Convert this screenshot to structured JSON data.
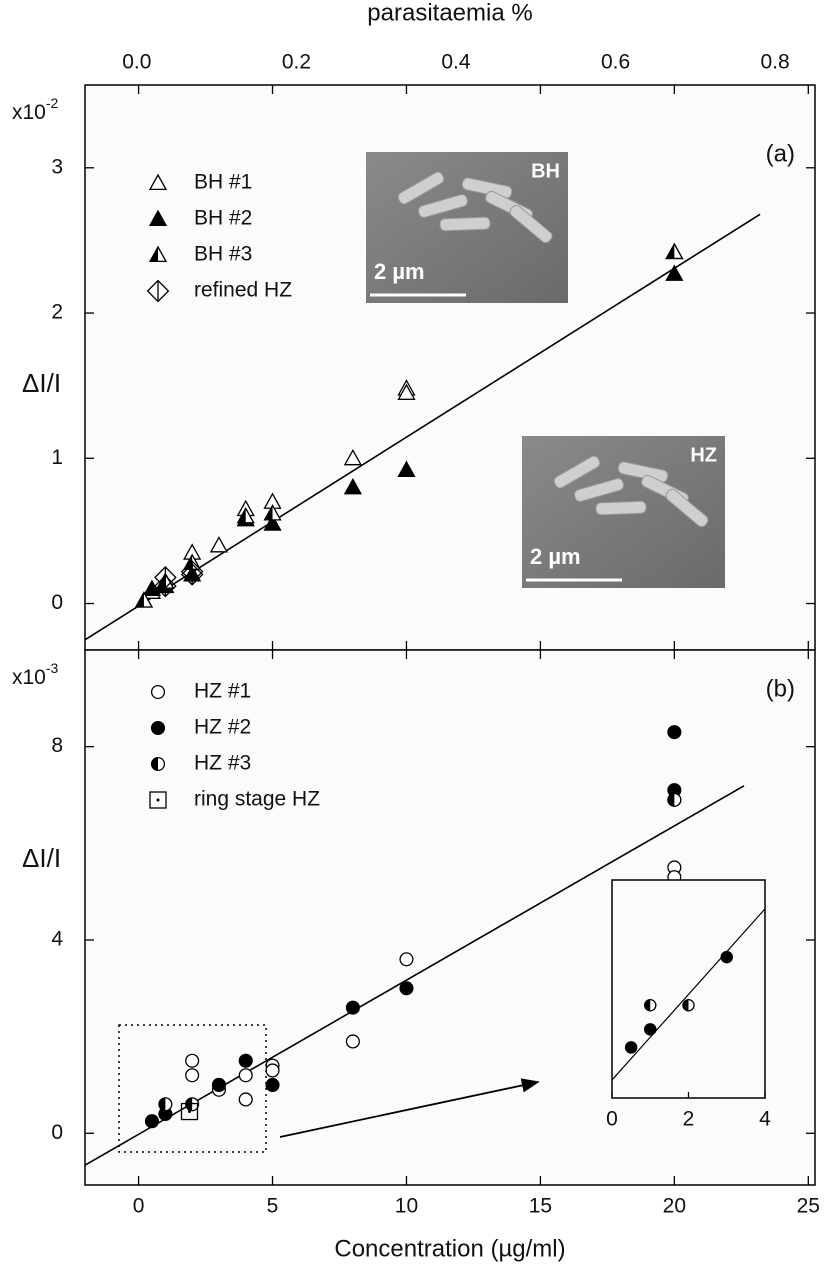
{
  "chart_data": [
    {
      "type": "scatter",
      "panel_label": "(a)",
      "ylabel": "ΔI/I",
      "y_multiplier": {
        "base": "x10",
        "exponent": "-2"
      },
      "x2label": "parasitaemia %",
      "xlim": [
        -2,
        25.25
      ],
      "xticks": [
        0,
        5,
        10,
        15,
        20,
        25
      ],
      "x2lim": [
        -0.065,
        0.85
      ],
      "x2ticks": [
        {
          "value": 0,
          "label": "0.0"
        },
        {
          "value": 0.2,
          "label": "0.2"
        },
        {
          "value": 0.4,
          "label": "0.4"
        },
        {
          "value": 0.6,
          "label": "0.6"
        },
        {
          "value": 0.8,
          "label": "0.8"
        }
      ],
      "ylim": [
        -0.32,
        3.57
      ],
      "yticks": [
        0,
        1,
        2,
        3
      ],
      "series": [
        {
          "name": "BH #1",
          "marker": "triangle-open",
          "color": "#000000",
          "x": [
            0.2,
            0.5,
            1,
            2,
            3,
            4,
            5,
            8,
            10,
            10,
            20
          ],
          "y": [
            0.02,
            0.08,
            0.15,
            0.35,
            0.4,
            0.65,
            0.7,
            1.0,
            1.48,
            1.45,
            2.42
          ]
        },
        {
          "name": "BH #2",
          "marker": "triangle-filled",
          "color": "#000000",
          "x": [
            0.5,
            1,
            2,
            4,
            5,
            8,
            10,
            20
          ],
          "y": [
            0.1,
            0.12,
            0.2,
            0.58,
            0.55,
            0.8,
            0.92,
            2.27
          ]
        },
        {
          "name": "BH #3",
          "marker": "triangle-half",
          "color": "#000000",
          "x": [
            0.2,
            1,
            2,
            4,
            5,
            20
          ],
          "y": [
            0.02,
            0.15,
            0.28,
            0.6,
            0.62,
            2.42
          ]
        },
        {
          "name": "refined HZ",
          "marker": "diamond-half",
          "color": "#000000",
          "x": [
            1,
            1,
            2,
            2
          ],
          "y": [
            0.12,
            0.18,
            0.2,
            0.22
          ]
        }
      ],
      "fit": {
        "x": [
          -2,
          23.2
        ],
        "y": [
          -0.25,
          2.68
        ]
      },
      "images": [
        {
          "label": "BH",
          "scale": "2 µm"
        },
        {
          "label": "HZ",
          "scale": "2 µm"
        }
      ]
    },
    {
      "type": "scatter",
      "panel_label": "(b)",
      "ylabel": "ΔI/I",
      "y_multiplier": {
        "base": "x10",
        "exponent": "-3"
      },
      "xlabel": "Concentration (µg/ml)",
      "xlim": [
        -2,
        25.25
      ],
      "xticks": [
        0,
        5,
        10,
        15,
        20,
        25
      ],
      "ylim": [
        -1.07,
        10
      ],
      "yticks": [
        0,
        4,
        8
      ],
      "series": [
        {
          "name": "HZ #1",
          "marker": "circle-open",
          "color": "#000000",
          "x": [
            2,
            2,
            3,
            3,
            4,
            4,
            5,
            5,
            8,
            10,
            20,
            20,
            20
          ],
          "y": [
            1.5,
            1.2,
            1.0,
            0.9,
            1.2,
            0.7,
            1.4,
            1.3,
            1.9,
            3.6,
            5.5,
            5.3,
            6.9
          ]
        },
        {
          "name": "HZ #2",
          "marker": "circle-filled",
          "color": "#000000",
          "x": [
            0.5,
            1,
            3,
            4,
            5,
            8,
            10,
            20,
            20
          ],
          "y": [
            0.25,
            0.4,
            1.0,
            1.5,
            1.0,
            2.6,
            3.0,
            8.3,
            7.1
          ]
        },
        {
          "name": "HZ #3",
          "marker": "circle-half",
          "color": "#000000",
          "x": [
            1,
            2,
            20
          ],
          "y": [
            0.6,
            0.6,
            6.9
          ]
        },
        {
          "name": "ring stage HZ",
          "marker": "square-dot",
          "color": "#000000",
          "x": [
            1.9
          ],
          "y": [
            0.45
          ]
        }
      ],
      "fit": {
        "x": [
          -2,
          22.6
        ],
        "y": [
          -0.66,
          7.19
        ]
      }
    },
    {
      "type": "scatter",
      "xlim": [
        0,
        4
      ],
      "xticks": [
        0,
        2,
        4
      ],
      "ylim": [
        -0.17,
        1.64
      ],
      "series": [
        {
          "marker": "circle-filled",
          "color": "#000000",
          "x": [
            0.5,
            1,
            3
          ],
          "y": [
            0.25,
            0.4,
            1.0
          ]
        },
        {
          "marker": "circle-half",
          "color": "#000000",
          "x": [
            1,
            2
          ],
          "y": [
            0.6,
            0.6
          ]
        }
      ],
      "fit": {
        "x": [
          0,
          4
        ],
        "y": [
          -0.02,
          1.4
        ]
      }
    }
  ]
}
